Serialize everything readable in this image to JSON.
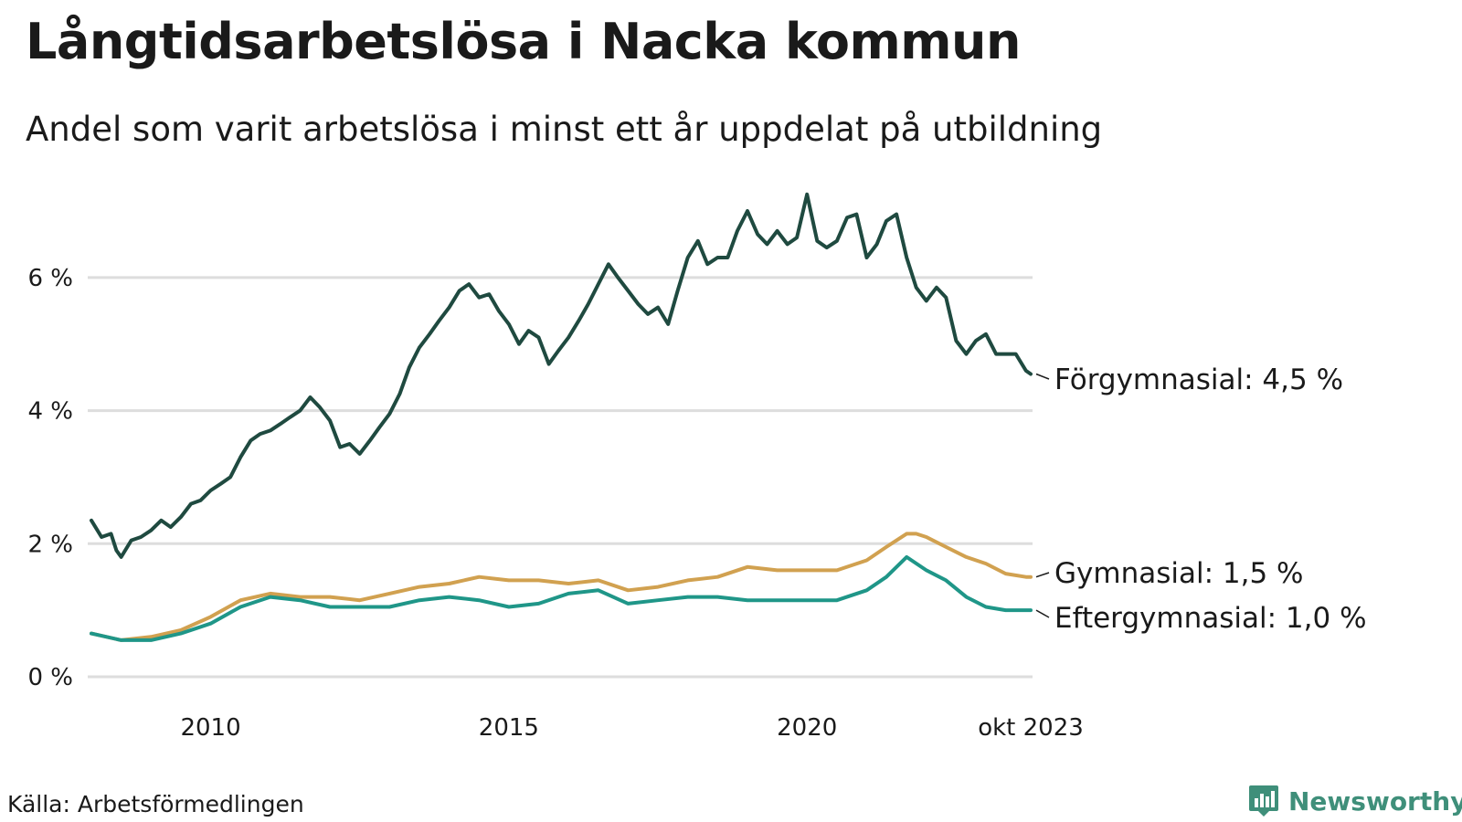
{
  "title": "Långtidsarbetslösa i Nacka kommun",
  "subtitle": "Andel som varit arbetslösa i minst ett år uppdelat på utbildning",
  "source": "Källa: Arbetsförmedlingen",
  "brand": "Newsworthy",
  "colors": {
    "forgymnasial": "#1f4a40",
    "gymnasial": "#d1a150",
    "eftergymnasial": "#1f9688",
    "grid": "#dddddd",
    "brand": "#3f8f7a"
  },
  "chart_data": {
    "type": "line",
    "title": "Långtidsarbetslösa i Nacka kommun",
    "xlabel": "",
    "ylabel": "",
    "xlim": [
      2008.0,
      2023.75
    ],
    "ylim": [
      0,
      7
    ],
    "y_ticks": [
      0,
      2,
      4,
      6
    ],
    "y_tick_labels": [
      "0 %",
      "2 %",
      "4 %",
      "6 %"
    ],
    "x_ticks": [
      2010,
      2015,
      2020,
      2023.75
    ],
    "x_tick_labels": [
      "2010",
      "2015",
      "2020",
      "okt 2023"
    ],
    "grid": true,
    "series": [
      {
        "name": "Förgymnasial",
        "color_key": "forgymnasial",
        "label": "Förgymnasial: 4,5 %",
        "points": [
          [
            2008.0,
            2.35
          ],
          [
            2008.17,
            2.1
          ],
          [
            2008.33,
            2.15
          ],
          [
            2008.42,
            1.9
          ],
          [
            2008.5,
            1.8
          ],
          [
            2008.67,
            2.05
          ],
          [
            2008.83,
            2.1
          ],
          [
            2009.0,
            2.2
          ],
          [
            2009.17,
            2.35
          ],
          [
            2009.33,
            2.25
          ],
          [
            2009.5,
            2.4
          ],
          [
            2009.67,
            2.6
          ],
          [
            2009.83,
            2.65
          ],
          [
            2010.0,
            2.8
          ],
          [
            2010.17,
            2.9
          ],
          [
            2010.33,
            3.0
          ],
          [
            2010.5,
            3.3
          ],
          [
            2010.67,
            3.55
          ],
          [
            2010.83,
            3.65
          ],
          [
            2011.0,
            3.7
          ],
          [
            2011.17,
            3.8
          ],
          [
            2011.33,
            3.9
          ],
          [
            2011.5,
            4.0
          ],
          [
            2011.67,
            4.2
          ],
          [
            2011.83,
            4.05
          ],
          [
            2012.0,
            3.85
          ],
          [
            2012.17,
            3.45
          ],
          [
            2012.33,
            3.5
          ],
          [
            2012.5,
            3.35
          ],
          [
            2012.67,
            3.55
          ],
          [
            2012.83,
            3.75
          ],
          [
            2013.0,
            3.95
          ],
          [
            2013.17,
            4.25
          ],
          [
            2013.33,
            4.65
          ],
          [
            2013.5,
            4.95
          ],
          [
            2013.67,
            5.15
          ],
          [
            2013.83,
            5.35
          ],
          [
            2014.0,
            5.55
          ],
          [
            2014.17,
            5.8
          ],
          [
            2014.33,
            5.9
          ],
          [
            2014.5,
            5.7
          ],
          [
            2014.67,
            5.75
          ],
          [
            2014.83,
            5.5
          ],
          [
            2015.0,
            5.3
          ],
          [
            2015.17,
            5.0
          ],
          [
            2015.33,
            5.2
          ],
          [
            2015.5,
            5.1
          ],
          [
            2015.67,
            4.7
          ],
          [
            2015.83,
            4.9
          ],
          [
            2016.0,
            5.1
          ],
          [
            2016.17,
            5.35
          ],
          [
            2016.33,
            5.6
          ],
          [
            2016.5,
            5.9
          ],
          [
            2016.67,
            6.2
          ],
          [
            2016.83,
            6.0
          ],
          [
            2017.0,
            5.8
          ],
          [
            2017.17,
            5.6
          ],
          [
            2017.33,
            5.45
          ],
          [
            2017.5,
            5.55
          ],
          [
            2017.67,
            5.3
          ],
          [
            2017.83,
            5.8
          ],
          [
            2018.0,
            6.3
          ],
          [
            2018.17,
            6.55
          ],
          [
            2018.33,
            6.2
          ],
          [
            2018.5,
            6.3
          ],
          [
            2018.67,
            6.3
          ],
          [
            2018.83,
            6.7
          ],
          [
            2019.0,
            7.0
          ],
          [
            2019.17,
            6.65
          ],
          [
            2019.33,
            6.5
          ],
          [
            2019.5,
            6.7
          ],
          [
            2019.67,
            6.5
          ],
          [
            2019.83,
            6.6
          ],
          [
            2020.0,
            7.25
          ],
          [
            2020.17,
            6.55
          ],
          [
            2020.33,
            6.45
          ],
          [
            2020.5,
            6.55
          ],
          [
            2020.67,
            6.9
          ],
          [
            2020.83,
            6.95
          ],
          [
            2021.0,
            6.3
          ],
          [
            2021.17,
            6.5
          ],
          [
            2021.33,
            6.85
          ],
          [
            2021.5,
            6.95
          ],
          [
            2021.67,
            6.3
          ],
          [
            2021.83,
            5.85
          ],
          [
            2022.0,
            5.65
          ],
          [
            2022.17,
            5.85
          ],
          [
            2022.33,
            5.7
          ],
          [
            2022.5,
            5.05
          ],
          [
            2022.67,
            4.85
          ],
          [
            2022.83,
            5.05
          ],
          [
            2023.0,
            5.15
          ],
          [
            2023.17,
            4.85
          ],
          [
            2023.33,
            4.85
          ],
          [
            2023.5,
            4.85
          ],
          [
            2023.67,
            4.6
          ],
          [
            2023.75,
            4.55
          ]
        ]
      },
      {
        "name": "Gymnasial",
        "color_key": "gymnasial",
        "label": "Gymnasial: 1,5 %",
        "points": [
          [
            2008.0,
            0.65
          ],
          [
            2008.5,
            0.55
          ],
          [
            2009.0,
            0.6
          ],
          [
            2009.5,
            0.7
          ],
          [
            2010.0,
            0.9
          ],
          [
            2010.5,
            1.15
          ],
          [
            2011.0,
            1.25
          ],
          [
            2011.5,
            1.2
          ],
          [
            2012.0,
            1.2
          ],
          [
            2012.5,
            1.15
          ],
          [
            2013.0,
            1.25
          ],
          [
            2013.5,
            1.35
          ],
          [
            2014.0,
            1.4
          ],
          [
            2014.5,
            1.5
          ],
          [
            2015.0,
            1.45
          ],
          [
            2015.5,
            1.45
          ],
          [
            2016.0,
            1.4
          ],
          [
            2016.5,
            1.45
          ],
          [
            2017.0,
            1.3
          ],
          [
            2017.5,
            1.35
          ],
          [
            2018.0,
            1.45
          ],
          [
            2018.5,
            1.5
          ],
          [
            2019.0,
            1.65
          ],
          [
            2019.5,
            1.6
          ],
          [
            2020.0,
            1.6
          ],
          [
            2020.5,
            1.6
          ],
          [
            2021.0,
            1.75
          ],
          [
            2021.33,
            1.95
          ],
          [
            2021.67,
            2.15
          ],
          [
            2021.83,
            2.15
          ],
          [
            2022.0,
            2.1
          ],
          [
            2022.33,
            1.95
          ],
          [
            2022.67,
            1.8
          ],
          [
            2023.0,
            1.7
          ],
          [
            2023.33,
            1.55
          ],
          [
            2023.67,
            1.5
          ],
          [
            2023.75,
            1.5
          ]
        ]
      },
      {
        "name": "Eftergymnasial",
        "color_key": "eftergymnasial",
        "label": "Eftergymnasial: 1,0 %",
        "points": [
          [
            2008.0,
            0.65
          ],
          [
            2008.5,
            0.55
          ],
          [
            2009.0,
            0.55
          ],
          [
            2009.5,
            0.65
          ],
          [
            2010.0,
            0.8
          ],
          [
            2010.5,
            1.05
          ],
          [
            2011.0,
            1.2
          ],
          [
            2011.5,
            1.15
          ],
          [
            2012.0,
            1.05
          ],
          [
            2012.5,
            1.05
          ],
          [
            2013.0,
            1.05
          ],
          [
            2013.5,
            1.15
          ],
          [
            2014.0,
            1.2
          ],
          [
            2014.5,
            1.15
          ],
          [
            2015.0,
            1.05
          ],
          [
            2015.5,
            1.1
          ],
          [
            2016.0,
            1.25
          ],
          [
            2016.5,
            1.3
          ],
          [
            2017.0,
            1.1
          ],
          [
            2017.5,
            1.15
          ],
          [
            2018.0,
            1.2
          ],
          [
            2018.5,
            1.2
          ],
          [
            2019.0,
            1.15
          ],
          [
            2019.5,
            1.15
          ],
          [
            2020.0,
            1.15
          ],
          [
            2020.5,
            1.15
          ],
          [
            2021.0,
            1.3
          ],
          [
            2021.33,
            1.5
          ],
          [
            2021.67,
            1.8
          ],
          [
            2022.0,
            1.6
          ],
          [
            2022.33,
            1.45
          ],
          [
            2022.67,
            1.2
          ],
          [
            2023.0,
            1.05
          ],
          [
            2023.33,
            1.0
          ],
          [
            2023.75,
            1.0
          ]
        ]
      }
    ]
  }
}
